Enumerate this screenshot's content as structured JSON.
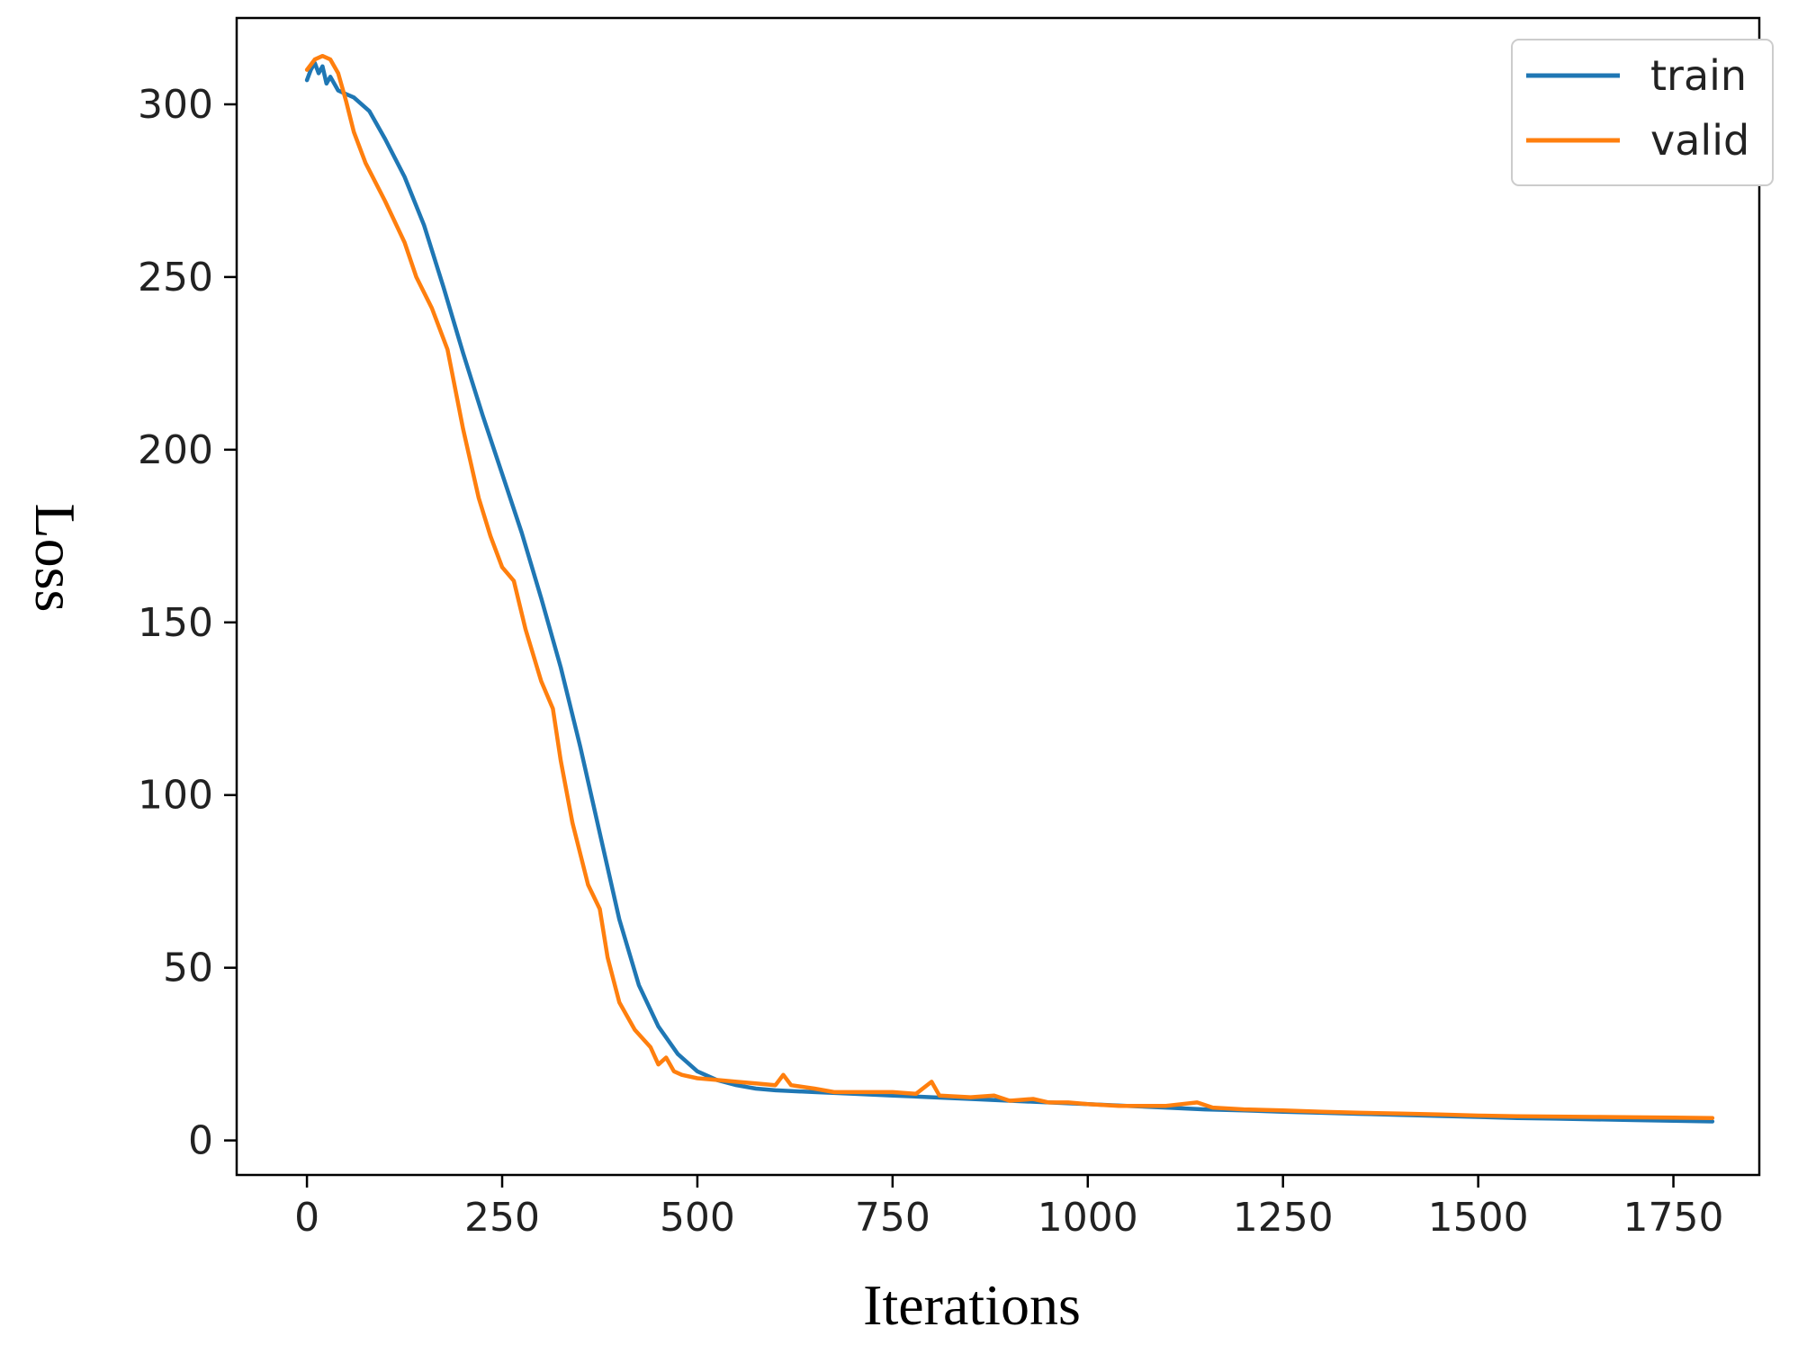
{
  "chart_data": {
    "type": "line",
    "title": "",
    "xlabel": "Iterations",
    "ylabel": "Loss",
    "xlim": [
      -90,
      1860
    ],
    "ylim": [
      -10,
      325
    ],
    "xticks": [
      0,
      250,
      500,
      750,
      1000,
      1250,
      1500,
      1750
    ],
    "yticks": [
      0,
      50,
      100,
      150,
      200,
      250,
      300
    ],
    "xtick_labels": [
      "0",
      "250",
      "500",
      "750",
      "1000",
      "1250",
      "1500",
      "1750"
    ],
    "ytick_labels": [
      "0",
      "50",
      "100",
      "150",
      "200",
      "250",
      "300"
    ],
    "grid": false,
    "legend_position": "top-right",
    "series": [
      {
        "name": "train",
        "color": "#1f77b4",
        "points": [
          [
            0,
            307
          ],
          [
            5,
            310
          ],
          [
            10,
            312
          ],
          [
            15,
            309
          ],
          [
            20,
            311
          ],
          [
            25,
            306
          ],
          [
            30,
            308
          ],
          [
            40,
            304
          ],
          [
            50,
            303
          ],
          [
            60,
            302
          ],
          [
            80,
            298
          ],
          [
            100,
            290
          ],
          [
            125,
            279
          ],
          [
            150,
            265
          ],
          [
            175,
            247
          ],
          [
            200,
            228
          ],
          [
            225,
            210
          ],
          [
            250,
            193
          ],
          [
            275,
            176
          ],
          [
            300,
            157
          ],
          [
            325,
            137
          ],
          [
            350,
            114
          ],
          [
            375,
            89
          ],
          [
            400,
            64
          ],
          [
            425,
            45
          ],
          [
            450,
            33
          ],
          [
            475,
            25
          ],
          [
            500,
            20
          ],
          [
            525,
            17.5
          ],
          [
            550,
            16
          ],
          [
            575,
            15
          ],
          [
            600,
            14.5
          ],
          [
            650,
            14
          ],
          [
            700,
            13.5
          ],
          [
            750,
            13
          ],
          [
            800,
            12.5
          ],
          [
            850,
            12
          ],
          [
            900,
            11.5
          ],
          [
            950,
            11
          ],
          [
            1000,
            10.5
          ],
          [
            1050,
            10
          ],
          [
            1100,
            9.5
          ],
          [
            1150,
            9
          ],
          [
            1200,
            8.7
          ],
          [
            1250,
            8.3
          ],
          [
            1300,
            8
          ],
          [
            1350,
            7.7
          ],
          [
            1400,
            7.4
          ],
          [
            1450,
            7.1
          ],
          [
            1500,
            6.8
          ],
          [
            1550,
            6.5
          ],
          [
            1600,
            6.3
          ],
          [
            1650,
            6.1
          ],
          [
            1700,
            5.9
          ],
          [
            1750,
            5.7
          ],
          [
            1800,
            5.5
          ]
        ]
      },
      {
        "name": "valid",
        "color": "#ff7f0e",
        "points": [
          [
            0,
            310
          ],
          [
            10,
            313
          ],
          [
            20,
            314
          ],
          [
            30,
            313
          ],
          [
            40,
            309
          ],
          [
            50,
            301
          ],
          [
            60,
            292
          ],
          [
            75,
            283
          ],
          [
            100,
            272
          ],
          [
            125,
            260
          ],
          [
            140,
            250
          ],
          [
            160,
            241
          ],
          [
            180,
            229
          ],
          [
            200,
            206
          ],
          [
            220,
            186
          ],
          [
            235,
            175
          ],
          [
            250,
            166
          ],
          [
            265,
            162
          ],
          [
            280,
            148
          ],
          [
            300,
            133
          ],
          [
            315,
            125
          ],
          [
            325,
            110
          ],
          [
            340,
            92
          ],
          [
            360,
            74
          ],
          [
            375,
            67
          ],
          [
            385,
            53
          ],
          [
            400,
            40
          ],
          [
            420,
            32
          ],
          [
            440,
            27
          ],
          [
            450,
            22
          ],
          [
            460,
            24
          ],
          [
            470,
            20
          ],
          [
            480,
            19
          ],
          [
            500,
            18
          ],
          [
            525,
            17.5
          ],
          [
            550,
            17
          ],
          [
            575,
            16.5
          ],
          [
            600,
            16
          ],
          [
            610,
            19
          ],
          [
            620,
            16
          ],
          [
            650,
            15
          ],
          [
            675,
            14
          ],
          [
            700,
            14
          ],
          [
            750,
            14
          ],
          [
            780,
            13.5
          ],
          [
            800,
            17
          ],
          [
            810,
            13
          ],
          [
            850,
            12.5
          ],
          [
            880,
            13
          ],
          [
            900,
            11.5
          ],
          [
            930,
            12
          ],
          [
            950,
            11
          ],
          [
            975,
            11
          ],
          [
            1000,
            10.5
          ],
          [
            1040,
            10
          ],
          [
            1100,
            10
          ],
          [
            1140,
            11
          ],
          [
            1160,
            9.5
          ],
          [
            1200,
            9
          ],
          [
            1250,
            8.7
          ],
          [
            1300,
            8.3
          ],
          [
            1350,
            8
          ],
          [
            1400,
            7.8
          ],
          [
            1450,
            7.5
          ],
          [
            1500,
            7.2
          ],
          [
            1550,
            7
          ],
          [
            1600,
            6.9
          ],
          [
            1650,
            6.8
          ],
          [
            1700,
            6.7
          ],
          [
            1750,
            6.6
          ],
          [
            1800,
            6.5
          ]
        ]
      }
    ]
  }
}
